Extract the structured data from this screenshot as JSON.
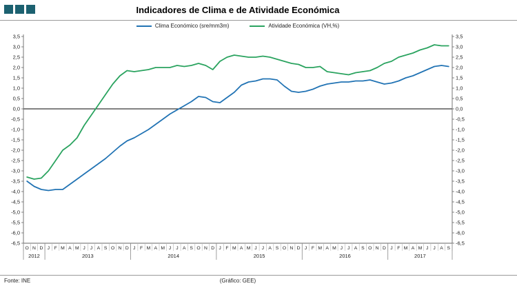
{
  "header": {
    "title": "Indicadores de Clima e de Atividade Económica",
    "logo_color": "#1c6170",
    "logo_squares": 3
  },
  "footer": {
    "source": "Fonte: INE",
    "credit": "(Gráfico:  GEE)"
  },
  "chart_data": {
    "type": "line",
    "title": "Indicadores de Clima e de Atividade Económica",
    "grid": false,
    "zero_line": true,
    "legend_position": "top",
    "ylim": [
      -6.5,
      3.5
    ],
    "y_tick_step": 0.5,
    "y_tick_labels": [
      "3,5",
      "3,0",
      "2,5",
      "2,0",
      "1,5",
      "1,0",
      "0,5",
      "0,0",
      "-0,5",
      "-1,0",
      "-1,5",
      "-2,0",
      "-2,5",
      "-3,0",
      "-3,5",
      "-4,0",
      "-4,5",
      "-5,0",
      "-5,5",
      "-6,0",
      "-6,5"
    ],
    "x_groups": [
      {
        "year": "2012",
        "months": [
          "O",
          "N",
          "D"
        ]
      },
      {
        "year": "2013",
        "months": [
          "J",
          "F",
          "M",
          "A",
          "M",
          "J",
          "J",
          "A",
          "S",
          "O",
          "N",
          "D"
        ]
      },
      {
        "year": "2014",
        "months": [
          "J",
          "F",
          "M",
          "A",
          "M",
          "J",
          "J",
          "A",
          "S",
          "O",
          "N",
          "D"
        ]
      },
      {
        "year": "2015",
        "months": [
          "J",
          "F",
          "M",
          "A",
          "M",
          "J",
          "J",
          "A",
          "S",
          "O",
          "N",
          "D"
        ]
      },
      {
        "year": "2016",
        "months": [
          "J",
          "F",
          "M",
          "A",
          "M",
          "J",
          "J",
          "A",
          "S",
          "O",
          "N",
          "D"
        ]
      },
      {
        "year": "2017",
        "months": [
          "J",
          "F",
          "M",
          "A",
          "M",
          "J",
          "J",
          "A",
          "S"
        ]
      }
    ],
    "series": [
      {
        "name": "Clima Económico (sre/mm3m)",
        "color": "#2173b4",
        "values": [
          -3.5,
          -3.75,
          -3.9,
          -3.95,
          -3.9,
          -3.9,
          -3.65,
          -3.4,
          -3.15,
          -2.9,
          -2.65,
          -2.4,
          -2.1,
          -1.8,
          -1.55,
          -1.4,
          -1.2,
          -1.0,
          -0.75,
          -0.5,
          -0.25,
          -0.05,
          0.15,
          0.35,
          0.6,
          0.55,
          0.35,
          0.3,
          0.55,
          0.8,
          1.15,
          1.3,
          1.35,
          1.45,
          1.45,
          1.4,
          1.1,
          0.85,
          0.8,
          0.85,
          0.95,
          1.1,
          1.2,
          1.25,
          1.3,
          1.3,
          1.35,
          1.35,
          1.4,
          1.3,
          1.2,
          1.25,
          1.35,
          1.5,
          1.6,
          1.75,
          1.9,
          2.05,
          2.1,
          2.05
        ]
      },
      {
        "name": "Atividade Económica (VH,%)",
        "color": "#2aa35f",
        "values": [
          -3.3,
          -3.4,
          -3.35,
          -3.0,
          -2.5,
          -2.0,
          -1.75,
          -1.4,
          -0.8,
          -0.3,
          0.2,
          0.7,
          1.2,
          1.6,
          1.85,
          1.8,
          1.85,
          1.9,
          2.0,
          2.0,
          2.0,
          2.1,
          2.05,
          2.1,
          2.2,
          2.1,
          1.9,
          2.3,
          2.5,
          2.6,
          2.55,
          2.5,
          2.5,
          2.55,
          2.5,
          2.4,
          2.3,
          2.2,
          2.15,
          2.0,
          2.0,
          2.05,
          1.8,
          1.75,
          1.7,
          1.65,
          1.75,
          1.8,
          1.85,
          2.0,
          2.2,
          2.3,
          2.5,
          2.6,
          2.7,
          2.85,
          2.95,
          3.1,
          3.05,
          3.05
        ]
      }
    ]
  }
}
